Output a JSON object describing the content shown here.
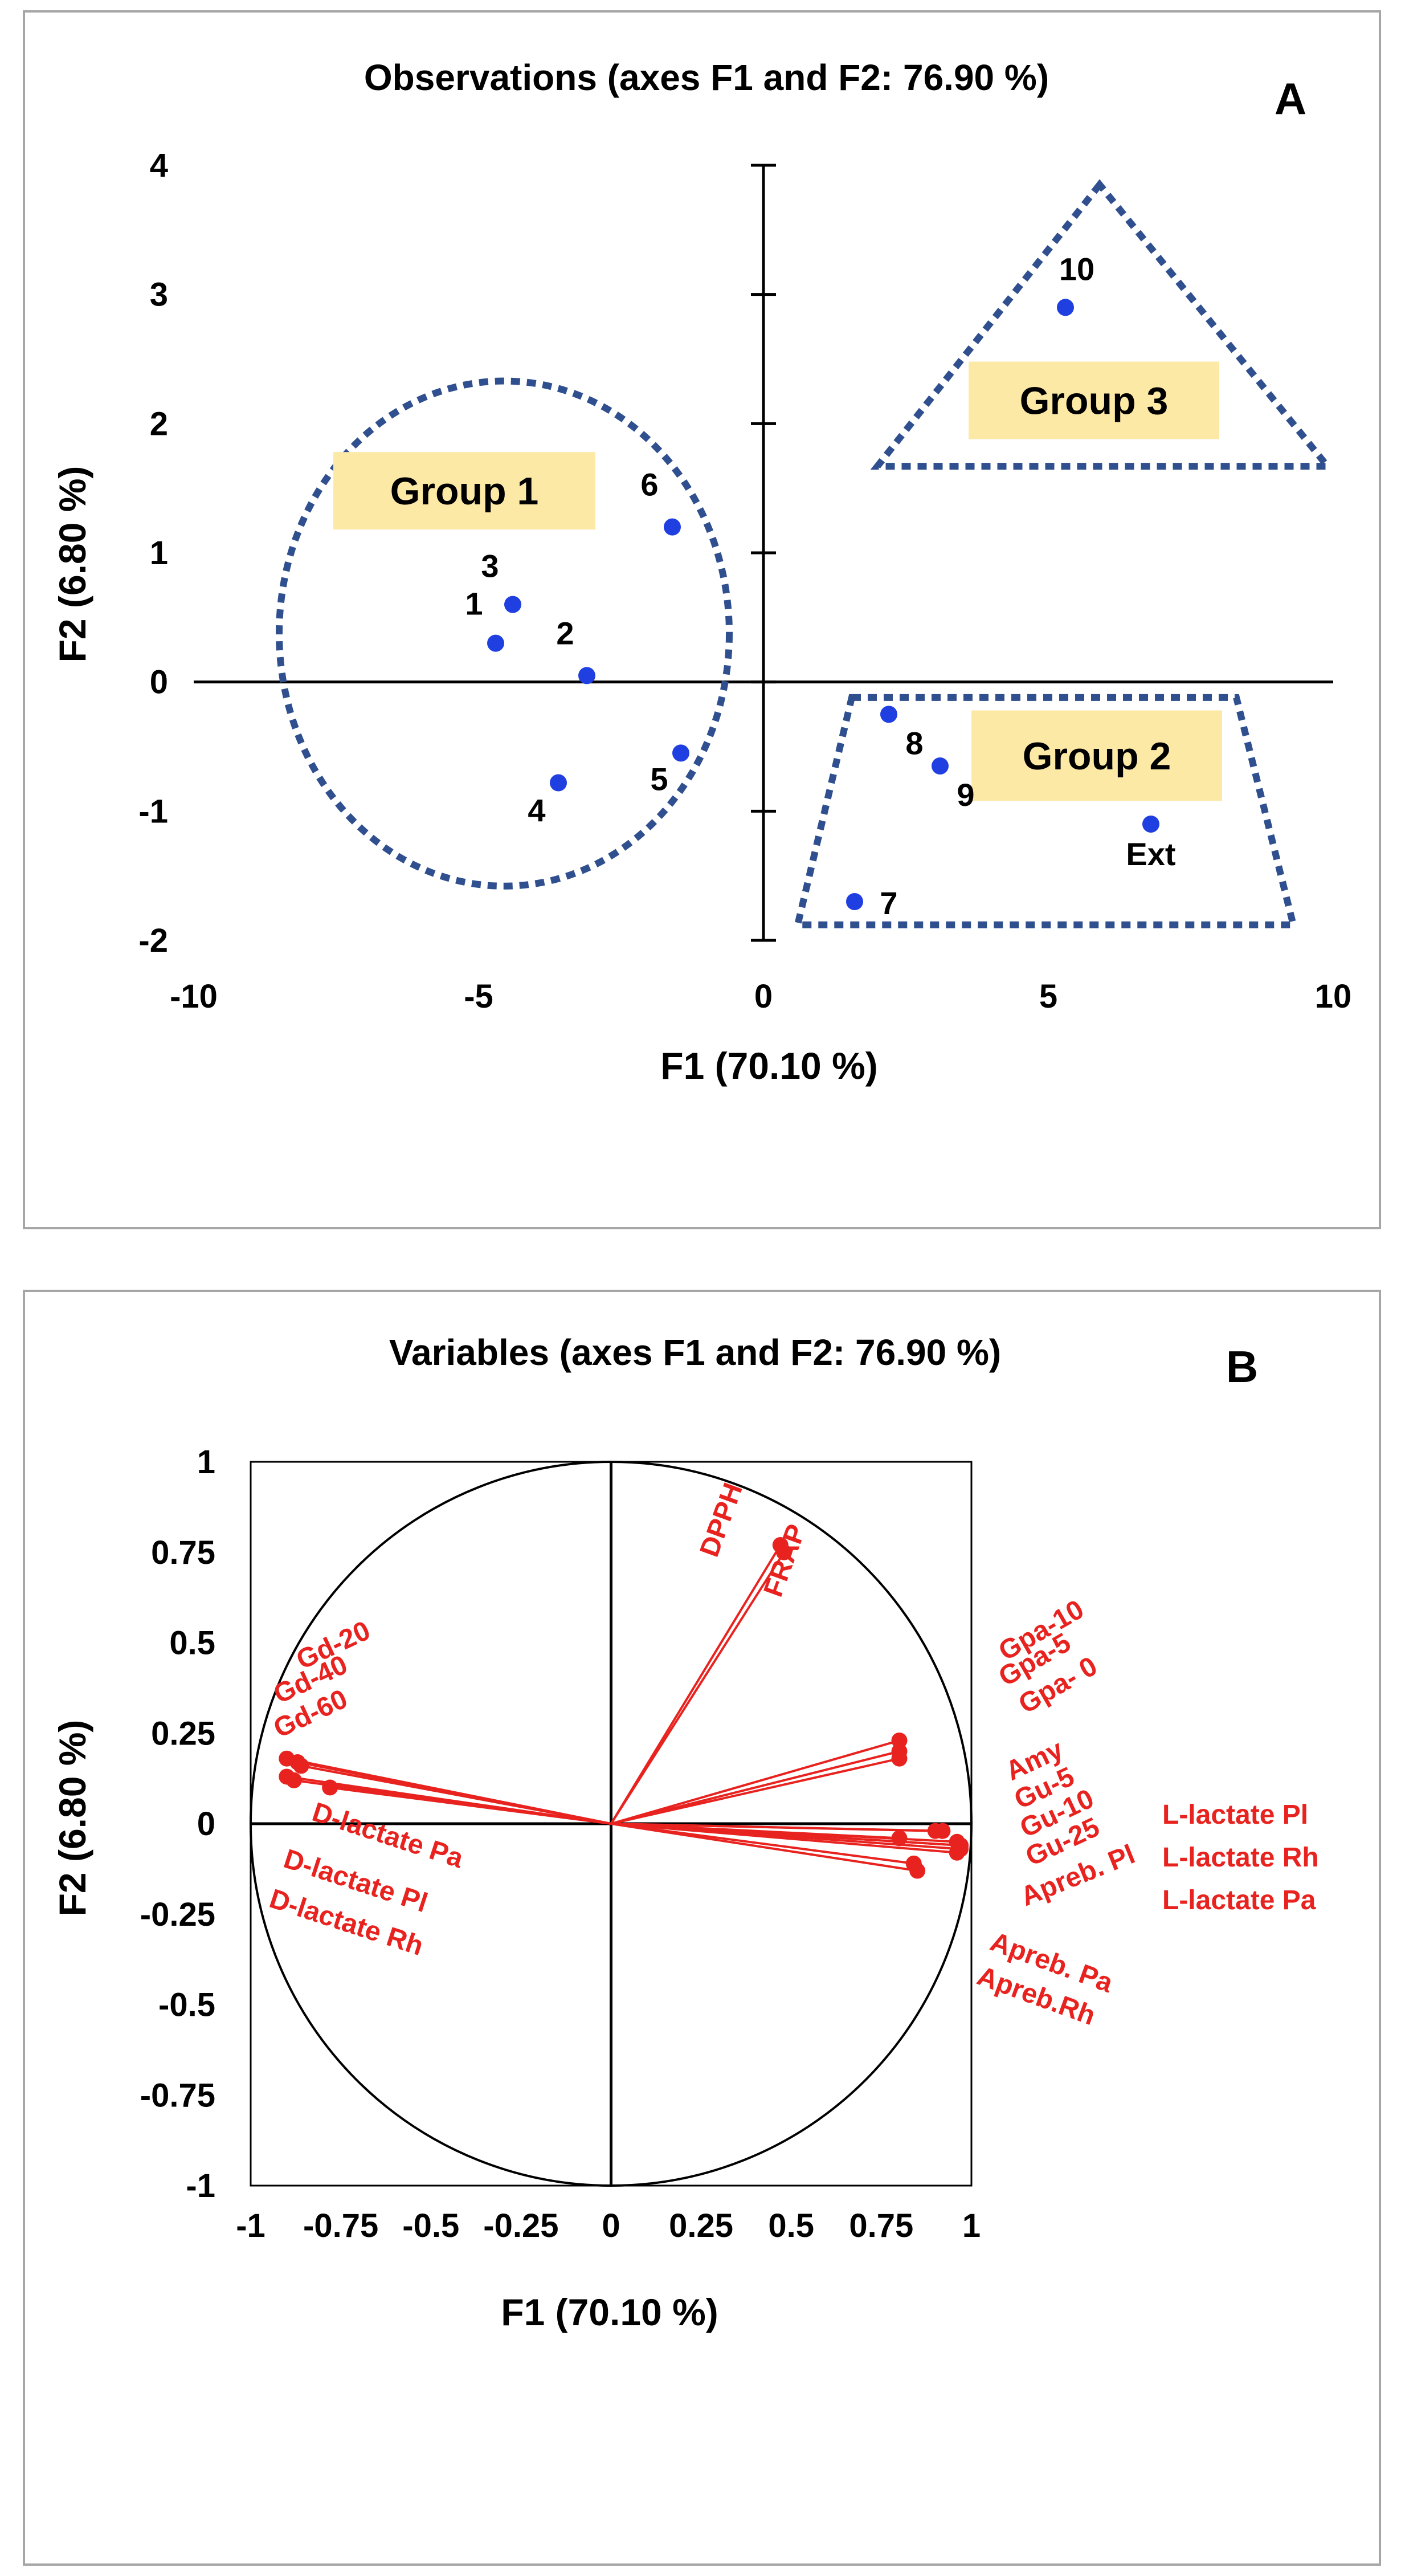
{
  "chart_data": [
    {
      "type": "scatter",
      "panel_letter": "A",
      "title": "Observations (axes F1 and F2: 76.90 %)",
      "xlabel": "F1 (70.10 %)",
      "ylabel": "F2 (6.80 %)",
      "xlim": [
        -10,
        10
      ],
      "ylim": [
        -2,
        4
      ],
      "xticks": [
        "-10",
        "-5",
        "0",
        "5",
        "10"
      ],
      "yticks": [
        "-2",
        "-1",
        "0",
        "1",
        "2",
        "3",
        "4"
      ],
      "point_color": "#1f3fe0",
      "group_color": "#2f4f8f",
      "group_fill": "#fde9a6",
      "points": [
        {
          "label": "1",
          "x": -4.7,
          "y": 0.3
        },
        {
          "label": "2",
          "x": -3.1,
          "y": 0.05
        },
        {
          "label": "3",
          "x": -4.4,
          "y": 0.6
        },
        {
          "label": "4",
          "x": -3.6,
          "y": -0.78
        },
        {
          "label": "5",
          "x": -1.45,
          "y": -0.55
        },
        {
          "label": "6",
          "x": -1.6,
          "y": 1.2
        },
        {
          "label": "7",
          "x": 1.6,
          "y": -1.7
        },
        {
          "label": "8",
          "x": 2.2,
          "y": -0.25
        },
        {
          "label": "9",
          "x": 3.1,
          "y": -0.65
        },
        {
          "label": "10",
          "x": 5.3,
          "y": 2.9
        },
        {
          "label": "Ext",
          "x": 6.8,
          "y": -1.1
        }
      ],
      "groups": [
        "Group 1",
        "Group 2",
        "Group 3"
      ]
    },
    {
      "type": "scatter",
      "panel_letter": "B",
      "title": "Variables (axes F1 and F2: 76.90 %)",
      "xlabel": "F1 (70.10 %)",
      "ylabel": "F2 (6.80 %)",
      "xlim": [
        -1,
        1
      ],
      "ylim": [
        -1,
        1
      ],
      "xticks": [
        "-1",
        "-0.75",
        "-0.5",
        "-0.25",
        "0",
        "0.25",
        "0.5",
        "0.75",
        "1"
      ],
      "yticks": [
        "-1",
        "-0.75",
        "-0.5",
        "-0.25",
        "0",
        "0.25",
        "0.5",
        "0.75",
        "1"
      ],
      "vector_color": "#e8231f",
      "vectors": [
        {
          "name": "DPPH",
          "x": 0.47,
          "y": 0.77
        },
        {
          "name": "FRAP",
          "x": 0.48,
          "y": 0.75
        },
        {
          "name": "Gpa-10",
          "x": 0.8,
          "y": 0.23
        },
        {
          "name": "Gpa-5",
          "x": 0.8,
          "y": 0.2
        },
        {
          "name": "Gpa- 0",
          "x": 0.8,
          "y": 0.18
        },
        {
          "name": "Amy",
          "x": 0.9,
          "y": -0.02
        },
        {
          "name": "Gu-5",
          "x": 0.92,
          "y": -0.02
        },
        {
          "name": "Gu-10",
          "x": 0.96,
          "y": -0.05
        },
        {
          "name": "Gu-25",
          "x": 0.97,
          "y": -0.06
        },
        {
          "name": "L-lactate Pl",
          "x": 0.97,
          "y": -0.07
        },
        {
          "name": "L-lactate Rh",
          "x": 0.96,
          "y": -0.08
        },
        {
          "name": "L-lactate Pa",
          "x": 0.97,
          "y": -0.06
        },
        {
          "name": "Apreb. Pl",
          "x": 0.8,
          "y": -0.04
        },
        {
          "name": "Apreb. Pa",
          "x": 0.84,
          "y": -0.11
        },
        {
          "name": "Apreb.Rh",
          "x": 0.85,
          "y": -0.13
        },
        {
          "name": "Gd-20",
          "x": -0.9,
          "y": 0.18
        },
        {
          "name": "Gd-40",
          "x": -0.86,
          "y": 0.16
        },
        {
          "name": "Gd-60",
          "x": -0.88,
          "y": 0.12
        },
        {
          "name": "D-lactate Pa",
          "x": -0.78,
          "y": 0.1
        },
        {
          "name": "D-lactate Pl",
          "x": -0.9,
          "y": 0.13
        },
        {
          "name": "D-lactate Rh",
          "x": -0.87,
          "y": 0.17
        }
      ]
    }
  ]
}
